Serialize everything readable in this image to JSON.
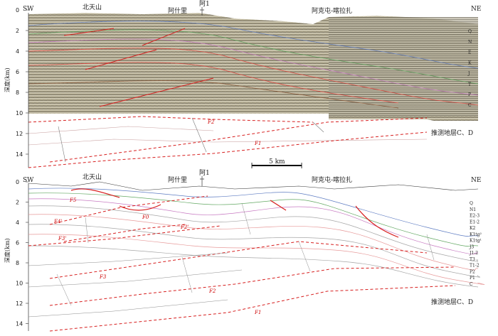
{
  "colors": {
    "fault": "#d71f1f",
    "horizon_red": "#e0413b",
    "seismic_base": "#b8b29a",
    "grid_gray": "#9a9a9a"
  },
  "top_section": {
    "corner_left": "SW",
    "corner_right": "NE",
    "place_beitianshan": "北天山",
    "place_ashili": "阿什里",
    "place_akt": "阿克屯-喀拉扎",
    "well": "阿1",
    "ylabel": "深度(km)",
    "depth_ticks": [
      "0",
      "2",
      "4",
      "6",
      "8",
      "10",
      "12",
      "14"
    ],
    "scale_bar": "5 km",
    "inferred_strata": "推测地层C、D",
    "faults": [
      "F2",
      "F1"
    ],
    "strata_legend": [
      "Q",
      "N",
      "E",
      "K",
      "J",
      "T",
      "P",
      "C"
    ]
  },
  "bottom_section": {
    "corner_left": "SW",
    "corner_right": "NE",
    "place_beitianshan": "北天山",
    "place_ashili": "阿什里",
    "place_akt": "阿克屯-喀拉扎",
    "well": "阿1",
    "ylabel": "深度(km)",
    "depth_ticks": [
      "0",
      "2",
      "4",
      "6",
      "8",
      "10",
      "12",
      "14"
    ],
    "inferred_strata": "推测地层C、D",
    "faults": [
      "F5",
      "F4'",
      "F0",
      "F2'",
      "F3'",
      "F3",
      "F2",
      "F1"
    ],
    "strata_legend": [
      "Q",
      "N1",
      "E2-3",
      "E1-2",
      "K2",
      "K1tg²",
      "K1tg¹",
      "J3",
      "J1-2",
      "T3",
      "T1-2",
      "P2",
      "P1",
      "C"
    ]
  }
}
